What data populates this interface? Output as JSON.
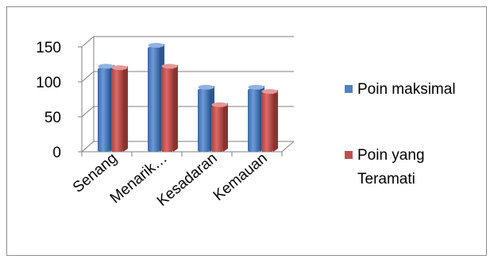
{
  "chart_data": {
    "type": "bar",
    "categories": [
      "Senang",
      "Menarik…",
      "Kesadaran",
      "Kemauan"
    ],
    "series": [
      {
        "name": "Poin maksimal",
        "values": [
          120,
          150,
          90,
          90
        ],
        "color": "#4f81bd"
      },
      {
        "name": "Poin yang Teramati",
        "values": [
          118,
          120,
          65,
          84
        ],
        "color": "#c0504d"
      }
    ],
    "yticks": [
      0,
      50,
      100,
      150
    ],
    "ylim": [
      0,
      150
    ],
    "grid": true,
    "legend_position": "right",
    "style": "3d clustered column"
  }
}
